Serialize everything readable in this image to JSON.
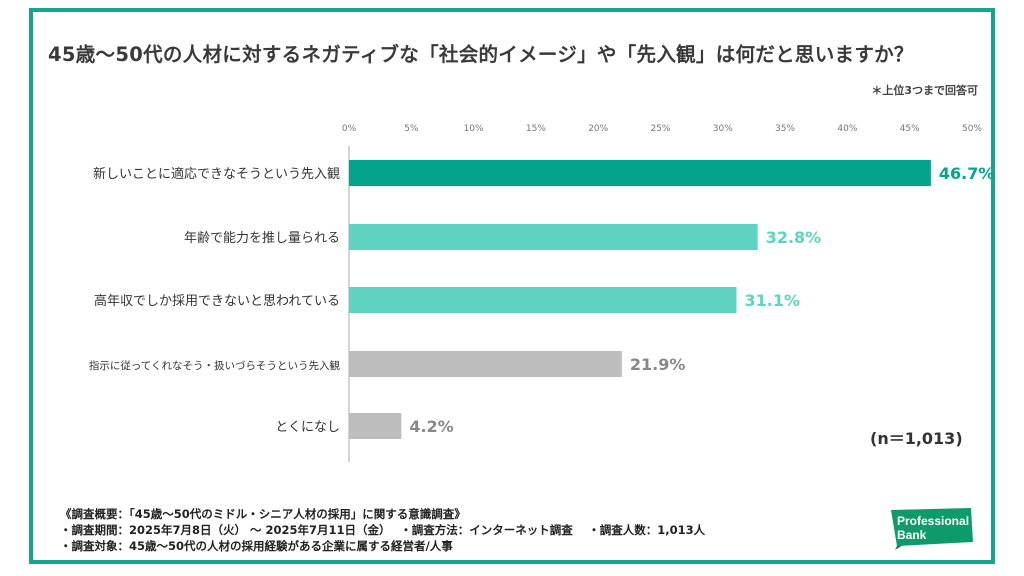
{
  "title": "45歳〜50代の人材に対するネガティブな「社会的イメージ」や「先入観」は何だと思いますか？",
  "note": "＊上位3つまで回答可",
  "sample_size": "(n＝1,013)",
  "footer": {
    "line1": "《調査概要：「45歳〜50代のミドル・シニア人材の採用」に関する意識調査》",
    "line2": "・調査期間：2025年7月8日（火） 〜 2025年7月11日（金）　 ・調査方法：インターネット調査　 ・調査人数：1,013人",
    "line3": "・調査対象：45歳〜50代の人材の採用経験がある企業に属する経営者/人事"
  },
  "logo": {
    "text1": "Professional",
    "text2": "Bank",
    "color": "#0e9b6b"
  },
  "colors": {
    "frame": "#19a58c",
    "top": "#04a48c",
    "mid": "#5fd3c1",
    "low": "#bdbdbd",
    "axis": "#aaaaaa"
  },
  "chart_data": {
    "type": "bar",
    "orientation": "horizontal",
    "xlim": [
      0,
      50
    ],
    "ticks": [
      "0%",
      "5%",
      "10%",
      "15%",
      "20%",
      "25%",
      "30%",
      "35%",
      "40%",
      "45%",
      "50%"
    ],
    "categories": [
      "新しいことに適応できなそうという先入観",
      "年齢で能力を推し量られる",
      "高年収でしか採用できないと思われている",
      "指示に従ってくれなそう・扱いづらそうという先入観",
      "とくになし"
    ],
    "values": [
      46.7,
      32.8,
      31.1,
      21.9,
      4.2
    ],
    "value_labels": [
      "46.7%",
      "32.8%",
      "31.1%",
      "21.9%",
      "4.2%"
    ],
    "bar_colors": [
      "#04a48c",
      "#5fd3c1",
      "#5fd3c1",
      "#bdbdbd",
      "#bdbdbd"
    ],
    "label_colors": [
      "#04a48c",
      "#5fd3c1",
      "#5fd3c1",
      "#888888",
      "#888888"
    ]
  }
}
